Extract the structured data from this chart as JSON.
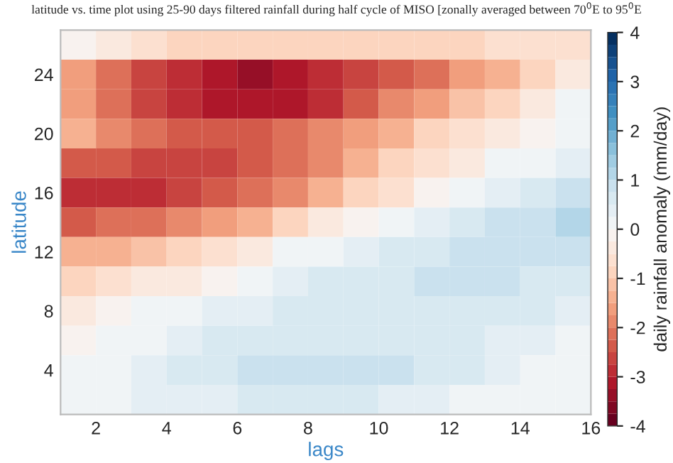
{
  "chart_data": {
    "type": "heatmap",
    "title": "latitude vs. time plot using 25-90 days filtered rainfall during half cycle of MISO [zonally averaged between 70$^{0}$E to 95$^{0}$E",
    "xlabel": "lags",
    "ylabel": "latitude",
    "clabel": "daily rainfall anomaly (mm/day)",
    "x": [
      1.5,
      2.5,
      3.5,
      4.5,
      5.5,
      6.5,
      7.5,
      8.5,
      9.5,
      10.5,
      11.5,
      12.5,
      13.5,
      14.5,
      15.5
    ],
    "y": [
      26,
      24,
      22,
      20,
      18,
      16,
      14,
      12,
      10,
      8,
      6,
      4,
      2
    ],
    "cells": [
      [
        -0.2,
        -0.3,
        -0.6,
        -0.8,
        -0.9,
        -0.9,
        -0.9,
        -0.9,
        -0.9,
        -0.9,
        -0.8,
        -0.8,
        -0.7,
        -0.6,
        -0.6
      ],
      [
        -1.6,
        -2.2,
        -2.6,
        -2.9,
        -3.1,
        -3.3,
        -3.2,
        -3.0,
        -2.7,
        -2.4,
        -2.1,
        -1.7,
        -1.3,
        -0.9,
        -0.4
      ],
      [
        -1.6,
        -2.2,
        -2.6,
        -2.8,
        -3.1,
        -3.2,
        -3.1,
        -2.8,
        -2.4,
        -2.0,
        -1.6,
        -1.2,
        -0.8,
        -0.3,
        0.0
      ],
      [
        -1.5,
        -2.0,
        -2.2,
        -2.3,
        -2.4,
        -2.4,
        -2.2,
        -1.9,
        -1.6,
        -1.3,
        -1.0,
        -0.7,
        -0.4,
        -0.1,
        0.1
      ],
      [
        -2.4,
        -2.5,
        -2.6,
        -2.7,
        -2.7,
        -2.5,
        -2.2,
        -1.8,
        -1.4,
        -1.0,
        -0.6,
        -0.3,
        0.0,
        0.2,
        0.4
      ],
      [
        -2.9,
        -2.9,
        -2.8,
        -2.7,
        -2.4,
        -2.1,
        -1.8,
        -1.4,
        -1.0,
        -0.6,
        -0.2,
        0.1,
        0.4,
        0.6,
        0.8
      ],
      [
        -2.4,
        -2.2,
        -2.1,
        -1.9,
        -1.6,
        -1.3,
        -0.9,
        -0.5,
        -0.1,
        0.2,
        0.4,
        0.6,
        0.8,
        0.9,
        1.0
      ],
      [
        -1.5,
        -1.4,
        -1.2,
        -0.9,
        -0.6,
        -0.3,
        0.0,
        0.2,
        0.4,
        0.6,
        0.7,
        0.8,
        0.9,
        0.9,
        0.8
      ],
      [
        -0.9,
        -0.7,
        -0.5,
        -0.3,
        -0.1,
        0.1,
        0.3,
        0.5,
        0.6,
        0.7,
        0.8,
        0.8,
        0.8,
        0.7,
        0.6
      ],
      [
        -0.4,
        -0.2,
        0.0,
        0.2,
        0.3,
        0.4,
        0.5,
        0.5,
        0.6,
        0.6,
        0.6,
        0.6,
        0.6,
        0.5,
        0.4
      ],
      [
        -0.1,
        0.1,
        0.2,
        0.4,
        0.5,
        0.6,
        0.6,
        0.6,
        0.6,
        0.6,
        0.6,
        0.5,
        0.4,
        0.3,
        0.2
      ],
      [
        0.1,
        0.2,
        0.4,
        0.6,
        0.7,
        0.9,
        0.9,
        0.9,
        0.9,
        0.9,
        0.7,
        0.5,
        0.3,
        0.2,
        0.1
      ],
      [
        0.0,
        0.1,
        0.3,
        0.4,
        0.4,
        0.5,
        0.5,
        0.5,
        0.5,
        0.4,
        0.3,
        0.2,
        0.1,
        0.1,
        0.1
      ]
    ],
    "xlim": [
      1,
      16
    ],
    "xticks": [
      2,
      4,
      6,
      8,
      10,
      12,
      14,
      16
    ],
    "ylim": [
      1,
      27
    ],
    "yticks": [
      4,
      8,
      12,
      16,
      20,
      24
    ],
    "clim": [
      -4,
      4
    ],
    "cticks": [
      -4,
      -3,
      -2,
      -1,
      0,
      1,
      2,
      3,
      4
    ]
  }
}
